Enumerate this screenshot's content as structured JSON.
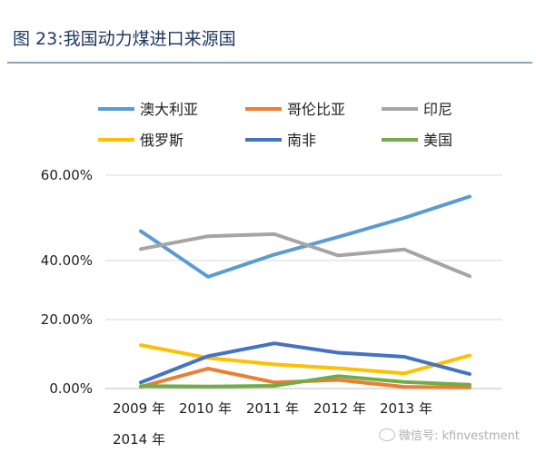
{
  "title": "图 23:我国动力煤进口来源国",
  "watermark": "微信号: kfinvestment",
  "chart_data": {
    "type": "line",
    "categories": [
      "2009 年",
      "2010 年",
      "2011 年",
      "2012 年",
      "2013 年",
      "2014 年"
    ],
    "y_ticks": [
      "60.00%",
      "40.00%",
      "20.00%",
      "0.00%"
    ],
    "ylim": [
      0,
      60
    ],
    "grid": true,
    "legend_position": "top",
    "series": [
      {
        "name": "澳大利亚",
        "color": "#5b9bd5",
        "values": [
          46.9,
          34.5,
          41.4,
          45.5,
          50.0,
          55.0
        ]
      },
      {
        "name": "哥伦比亚",
        "color": "#ed7d31",
        "values": [
          0.5,
          5.8,
          1.8,
          2.5,
          0.5,
          0.3
        ]
      },
      {
        "name": "印尼",
        "color": "#a5a5a5",
        "values": [
          42.7,
          45.7,
          46.2,
          41.2,
          42.6,
          34.7
        ]
      },
      {
        "name": "俄罗斯",
        "color": "#ffc000",
        "values": [
          12.6,
          8.9,
          7.0,
          5.9,
          4.4,
          9.6
        ]
      },
      {
        "name": "南非",
        "color": "#4472c4",
        "values": [
          1.8,
          9.4,
          13.1,
          10.4,
          9.2,
          4.2
        ]
      },
      {
        "name": "美国",
        "color": "#70ad47",
        "values": [
          0.7,
          0.6,
          0.8,
          3.6,
          1.9,
          1.1
        ]
      }
    ]
  }
}
